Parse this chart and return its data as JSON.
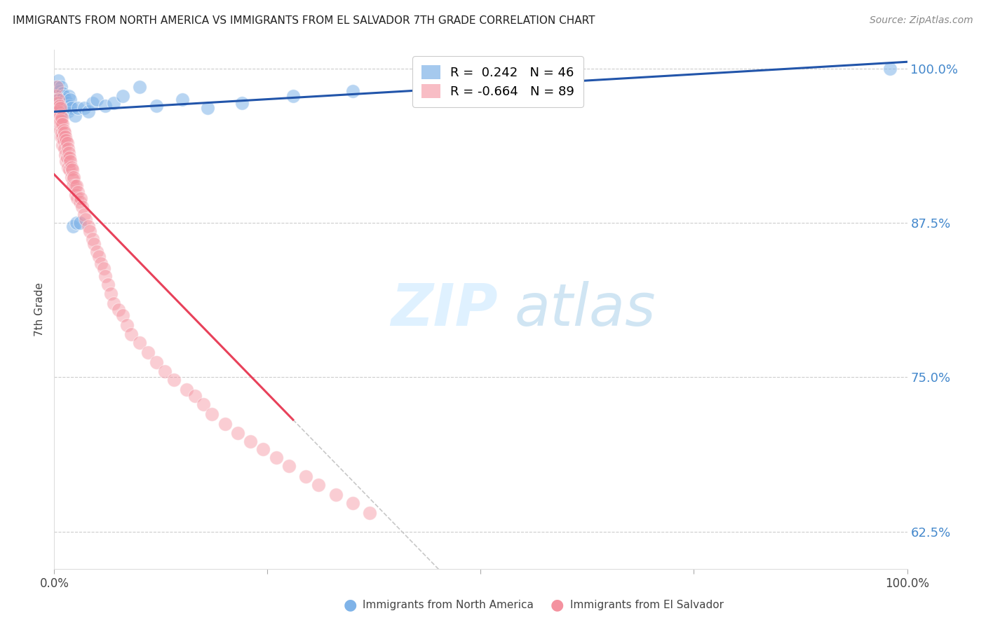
{
  "title": "IMMIGRANTS FROM NORTH AMERICA VS IMMIGRANTS FROM EL SALVADOR 7TH GRADE CORRELATION CHART",
  "source": "Source: ZipAtlas.com",
  "ylabel": "7th Grade",
  "right_ytick_labels": [
    "100.0%",
    "87.5%",
    "75.0%",
    "62.5%"
  ],
  "right_yticks": [
    1.0,
    0.875,
    0.75,
    0.625
  ],
  "legend_label_blue": "Immigrants from North America",
  "legend_label_pink": "Immigrants from El Salvador",
  "R_blue": 0.242,
  "N_blue": 46,
  "R_pink": -0.664,
  "N_pink": 89,
  "blue_color": "#7FB3E8",
  "pink_color": "#F4929F",
  "trendline_blue_color": "#2255AA",
  "trendline_pink_color": "#E8415A",
  "trendline_dashed_color": "#C8C8C8",
  "xlim": [
    0.0,
    1.0
  ],
  "ylim": [
    0.595,
    1.015
  ],
  "blue_x": [
    0.002,
    0.003,
    0.004,
    0.005,
    0.005,
    0.006,
    0.006,
    0.007,
    0.007,
    0.008,
    0.008,
    0.009,
    0.009,
    0.01,
    0.01,
    0.011,
    0.011,
    0.012,
    0.013,
    0.014,
    0.015,
    0.016,
    0.017,
    0.018,
    0.019,
    0.02,
    0.022,
    0.024,
    0.026,
    0.028,
    0.03,
    0.035,
    0.04,
    0.045,
    0.05,
    0.06,
    0.07,
    0.08,
    0.1,
    0.12,
    0.15,
    0.18,
    0.22,
    0.28,
    0.35,
    0.98
  ],
  "blue_y": [
    0.98,
    0.975,
    0.985,
    0.97,
    0.99,
    0.975,
    0.982,
    0.968,
    0.978,
    0.972,
    0.985,
    0.968,
    0.975,
    0.972,
    0.98,
    0.965,
    0.978,
    0.97,
    0.975,
    0.968,
    0.972,
    0.965,
    0.978,
    0.97,
    0.975,
    0.968,
    0.872,
    0.962,
    0.875,
    0.968,
    0.875,
    0.968,
    0.965,
    0.972,
    0.975,
    0.97,
    0.972,
    0.978,
    0.985,
    0.97,
    0.975,
    0.968,
    0.972,
    0.978,
    0.982,
    1.0
  ],
  "pink_x": [
    0.002,
    0.003,
    0.003,
    0.004,
    0.004,
    0.005,
    0.005,
    0.005,
    0.006,
    0.006,
    0.007,
    0.007,
    0.007,
    0.008,
    0.008,
    0.008,
    0.009,
    0.009,
    0.01,
    0.01,
    0.01,
    0.011,
    0.011,
    0.012,
    0.012,
    0.013,
    0.013,
    0.014,
    0.014,
    0.015,
    0.015,
    0.016,
    0.016,
    0.017,
    0.018,
    0.018,
    0.019,
    0.02,
    0.02,
    0.021,
    0.022,
    0.022,
    0.023,
    0.024,
    0.025,
    0.026,
    0.027,
    0.028,
    0.03,
    0.031,
    0.033,
    0.035,
    0.037,
    0.04,
    0.042,
    0.045,
    0.047,
    0.05,
    0.052,
    0.055,
    0.058,
    0.06,
    0.063,
    0.066,
    0.07,
    0.075,
    0.08,
    0.085,
    0.09,
    0.1,
    0.11,
    0.12,
    0.13,
    0.14,
    0.155,
    0.165,
    0.175,
    0.185,
    0.2,
    0.215,
    0.23,
    0.245,
    0.26,
    0.275,
    0.295,
    0.31,
    0.33,
    0.35,
    0.37
  ],
  "pink_y": [
    0.978,
    0.985,
    0.968,
    0.972,
    0.96,
    0.975,
    0.965,
    0.955,
    0.97,
    0.958,
    0.962,
    0.95,
    0.968,
    0.955,
    0.945,
    0.958,
    0.948,
    0.96,
    0.945,
    0.955,
    0.938,
    0.95,
    0.942,
    0.948,
    0.935,
    0.945,
    0.93,
    0.942,
    0.925,
    0.94,
    0.928,
    0.935,
    0.92,
    0.932,
    0.928,
    0.918,
    0.925,
    0.92,
    0.912,
    0.918,
    0.91,
    0.905,
    0.912,
    0.905,
    0.898,
    0.905,
    0.895,
    0.9,
    0.892,
    0.895,
    0.888,
    0.882,
    0.878,
    0.872,
    0.868,
    0.862,
    0.858,
    0.852,
    0.848,
    0.842,
    0.838,
    0.832,
    0.825,
    0.818,
    0.81,
    0.805,
    0.8,
    0.792,
    0.785,
    0.778,
    0.77,
    0.762,
    0.755,
    0.748,
    0.74,
    0.735,
    0.728,
    0.72,
    0.712,
    0.705,
    0.698,
    0.692,
    0.685,
    0.678,
    0.67,
    0.663,
    0.655,
    0.648,
    0.64
  ],
  "trendline_blue_start_x": 0.0,
  "trendline_blue_end_x": 1.0,
  "trendline_pink_solid_end_x": 0.28,
  "trendline_pink_dash_end_x": 1.0
}
